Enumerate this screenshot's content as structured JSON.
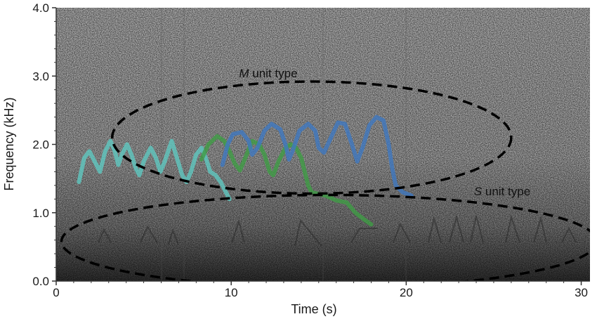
{
  "chart_data": {
    "type": "spectrogram",
    "xlabel": "Time (s)",
    "ylabel": "Frequency (kHz)",
    "xlim": [
      0,
      30.5
    ],
    "ylim": [
      0,
      4.0
    ],
    "xticks": [
      {
        "value": 0,
        "label": "0"
      },
      {
        "value": 10,
        "label": "10"
      },
      {
        "value": 20,
        "label": "20"
      },
      {
        "value": 30,
        "label": "30"
      }
    ],
    "yticks": [
      {
        "value": 0,
        "label": "0.0"
      },
      {
        "value": 1,
        "label": "1.0"
      },
      {
        "value": 2,
        "label": "2.0"
      },
      {
        "value": 3,
        "label": "3.0"
      },
      {
        "value": 4,
        "label": "4.0"
      }
    ],
    "grid": false,
    "background": "grayscale spectrogram noise",
    "series": [
      {
        "color": "#5fc8c0",
        "points": [
          [
            1.3,
            1.45
          ],
          [
            1.6,
            1.8
          ],
          [
            1.9,
            1.9
          ],
          [
            2.2,
            1.75
          ],
          [
            2.5,
            1.6
          ],
          [
            2.8,
            1.9
          ],
          [
            3.1,
            2.05
          ],
          [
            3.35,
            1.9
          ],
          [
            3.55,
            1.7
          ],
          [
            3.75,
            1.85
          ],
          [
            4.05,
            2.0
          ],
          [
            4.3,
            1.85
          ],
          [
            4.55,
            1.65
          ],
          [
            4.75,
            1.55
          ],
          [
            5.0,
            1.75
          ],
          [
            5.4,
            1.95
          ],
          [
            5.7,
            1.8
          ],
          [
            5.95,
            1.6
          ],
          [
            6.2,
            1.75
          ],
          [
            6.6,
            2.05
          ],
          [
            6.9,
            1.8
          ],
          [
            7.2,
            1.55
          ],
          [
            7.45,
            1.45
          ],
          [
            7.7,
            1.6
          ],
          [
            8.0,
            1.85
          ],
          [
            8.3,
            1.95
          ],
          [
            8.55,
            1.8
          ],
          [
            8.8,
            1.6
          ],
          [
            9.1,
            1.55
          ],
          [
            9.4,
            1.45
          ],
          [
            9.7,
            1.3
          ],
          [
            9.9,
            1.2
          ]
        ]
      },
      {
        "color": "#3f9c45",
        "points": [
          [
            8.3,
            1.78
          ],
          [
            8.7,
            2.0
          ],
          [
            9.2,
            2.12
          ],
          [
            9.6,
            2.05
          ],
          [
            9.9,
            1.9
          ],
          [
            10.2,
            1.72
          ],
          [
            10.5,
            1.62
          ],
          [
            10.8,
            1.8
          ],
          [
            11.2,
            2.05
          ],
          [
            11.6,
            2.0
          ],
          [
            11.9,
            1.85
          ],
          [
            12.2,
            1.6
          ],
          [
            12.4,
            1.55
          ],
          [
            12.7,
            1.75
          ],
          [
            13.1,
            1.95
          ],
          [
            13.4,
            2.0
          ],
          [
            13.7,
            1.95
          ],
          [
            14.0,
            1.8
          ],
          [
            14.2,
            1.6
          ],
          [
            14.4,
            1.4
          ],
          [
            14.6,
            1.3
          ],
          [
            14.9,
            1.28
          ],
          [
            15.4,
            1.25
          ],
          [
            16.0,
            1.18
          ],
          [
            16.6,
            1.15
          ],
          [
            17.1,
            1.0
          ],
          [
            17.6,
            0.9
          ],
          [
            18.0,
            0.83
          ]
        ]
      },
      {
        "color": "#3f78c0",
        "points": [
          [
            9.5,
            1.7
          ],
          [
            9.8,
            2.0
          ],
          [
            10.1,
            2.15
          ],
          [
            10.6,
            2.18
          ],
          [
            11.0,
            2.05
          ],
          [
            11.2,
            1.85
          ],
          [
            11.5,
            1.95
          ],
          [
            11.9,
            2.2
          ],
          [
            12.3,
            2.3
          ],
          [
            12.8,
            2.22
          ],
          [
            13.1,
            2.0
          ],
          [
            13.3,
            1.78
          ],
          [
            13.5,
            1.9
          ],
          [
            13.9,
            2.2
          ],
          [
            14.4,
            2.3
          ],
          [
            14.8,
            2.2
          ],
          [
            15.0,
            1.95
          ],
          [
            15.3,
            1.88
          ],
          [
            15.7,
            2.1
          ],
          [
            16.1,
            2.32
          ],
          [
            16.5,
            2.3
          ],
          [
            16.9,
            2.0
          ],
          [
            17.2,
            1.75
          ],
          [
            17.5,
            1.95
          ],
          [
            17.9,
            2.28
          ],
          [
            18.3,
            2.4
          ],
          [
            18.7,
            2.35
          ],
          [
            19.0,
            2.0
          ],
          [
            19.2,
            1.65
          ],
          [
            19.4,
            1.4
          ],
          [
            19.8,
            1.3
          ],
          [
            20.3,
            1.25
          ]
        ]
      }
    ],
    "annotations": [
      {
        "prefix": "M",
        "text": " unit type",
        "shape": "dashed ellipse",
        "center": [
          14.6,
          2.1
        ],
        "radii": [
          11.4,
          0.82
        ]
      },
      {
        "prefix": "S",
        "text": " unit type",
        "shape": "dashed ellipse",
        "center": [
          15.6,
          0.58
        ],
        "radii": [
          15.3,
          0.68
        ]
      }
    ]
  }
}
